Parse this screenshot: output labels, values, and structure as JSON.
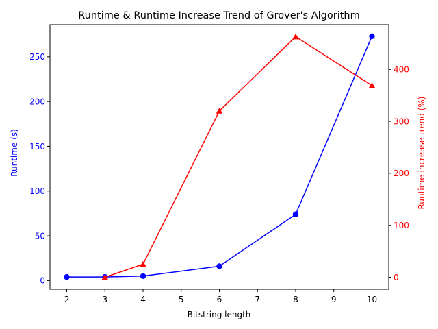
{
  "chart_data": {
    "type": "line",
    "title": "Runtime & Runtime Increase Trend of Grover's Algorithm",
    "xlabel": "Bitstring length",
    "x_ticks": [
      "2",
      "3",
      "4",
      "5",
      "6",
      "7",
      "8",
      "9",
      "10"
    ],
    "xlim": [
      1.56,
      10.44
    ],
    "left_axis": {
      "ylabel": "Runtime (s)",
      "color": "#0000ff",
      "ylim": [
        -9.7,
        285.9
      ],
      "ticks": [
        "0",
        "50",
        "100",
        "150",
        "200",
        "250"
      ]
    },
    "right_axis": {
      "ylabel": "Runtime increase trend (%)",
      "color": "#ff0000",
      "ylim": [
        -23.1,
        486.1
      ],
      "ticks": [
        "0",
        "100",
        "200",
        "300",
        "400"
      ]
    },
    "series": [
      {
        "axis": "left",
        "color": "#0000ff",
        "marker": "circle",
        "x": [
          2,
          3,
          4,
          6,
          8,
          10
        ],
        "y": [
          4.0,
          4.0,
          5.0,
          16.0,
          74.0,
          273.0
        ]
      },
      {
        "axis": "right",
        "color": "#ff0000",
        "marker": "triangle",
        "x": [
          3,
          4,
          6,
          8,
          10
        ],
        "y": [
          0,
          25,
          320,
          463,
          369
        ]
      }
    ],
    "grid": false,
    "legend": "none"
  }
}
